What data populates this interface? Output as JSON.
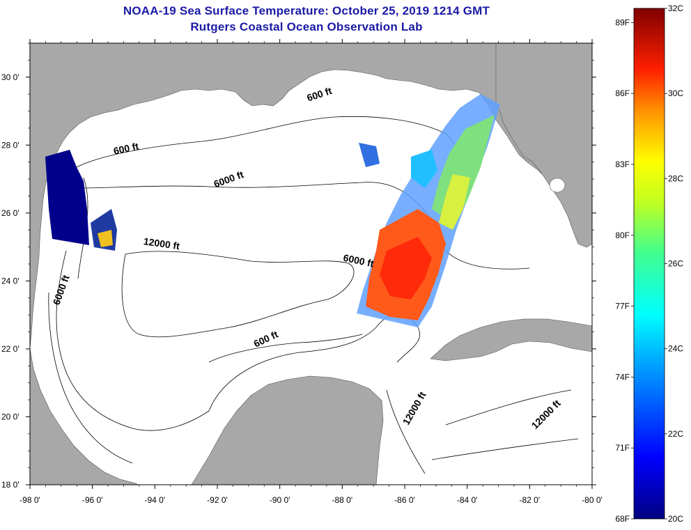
{
  "header": {
    "title": "NOAA-19 Sea Surface Temperature:  October 25, 2019 1214 GMT",
    "subtitle": "Rutgers Coastal Ocean Observation Lab"
  },
  "map": {
    "lon_range": [
      -98,
      -80
    ],
    "lat_range": [
      18,
      31
    ],
    "x_ticks": [
      "-98 0'",
      "-96 0'",
      "-94 0'",
      "-92 0'",
      "-90 0'",
      "-88 0'",
      "-86 0'",
      "-84 0'",
      "-82 0'",
      "-80 0'"
    ],
    "y_ticks": [
      "30 0'",
      "28 0'",
      "26 0'",
      "24 0'",
      "22 0'",
      "20 0'",
      "18 0'"
    ],
    "contour_labels": [
      {
        "text": "600 ft",
        "lon": -94.9,
        "lat": 27.8
      },
      {
        "text": "600 ft",
        "lon": -88.7,
        "lat": 29.4
      },
      {
        "text": "6000 ft",
        "lon": -91.6,
        "lat": 26.9
      },
      {
        "text": "12000 ft",
        "lon": -93.8,
        "lat": 25.0
      },
      {
        "text": "6000 ft",
        "lon": -96.9,
        "lat": 23.7
      },
      {
        "text": "6000 ft",
        "lon": -87.5,
        "lat": 24.5
      },
      {
        "text": "600 ft",
        "lon": -90.4,
        "lat": 22.2
      },
      {
        "text": "12000 ft",
        "lon": -85.6,
        "lat": 20.2
      },
      {
        "text": "12000 ft",
        "lon": -81.4,
        "lat": 20.0
      }
    ]
  },
  "colorbar": {
    "min_c": 20,
    "max_c": 32,
    "celsius_labels": [
      "32C",
      "30C",
      "28C",
      "26C",
      "24C",
      "22C",
      "20C"
    ],
    "fahrenheit_labels": [
      "89F",
      "86F",
      "83F",
      "80F",
      "77F",
      "74F",
      "71F",
      "68F"
    ]
  },
  "colors": {
    "land": "#a8a8a8",
    "ocean": "#ffffff",
    "title": "#1a1aa6"
  }
}
